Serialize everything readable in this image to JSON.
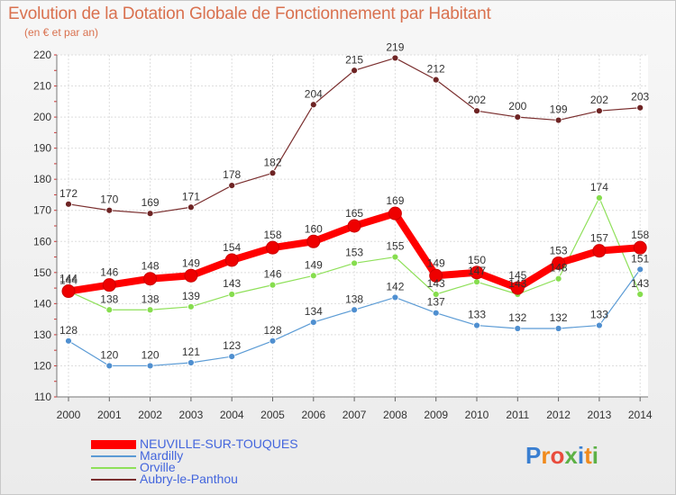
{
  "title": "Evolution de la Dotation Globale de Fonctionnement par Habitant",
  "subtitle": "(en € et par an)",
  "logo_text": "Proxiti",
  "chart_data": {
    "type": "line",
    "title": "Evolution de la Dotation Globale de Fonctionnement par Habitant",
    "subtitle": "(en € et par an)",
    "x": [
      2000,
      2001,
      2002,
      2003,
      2004,
      2005,
      2006,
      2007,
      2008,
      2009,
      2010,
      2011,
      2012,
      2013,
      2014
    ],
    "ylim": [
      110,
      220
    ],
    "yticks": [
      110,
      120,
      130,
      140,
      150,
      160,
      170,
      180,
      190,
      200,
      210,
      220
    ],
    "grid": true,
    "legend_position": "bottom-left",
    "series": [
      {
        "name": "NEUVILLE-SUR-TOUQUES",
        "color": "#ff0000",
        "values": [
          144,
          146,
          148,
          149,
          154,
          158,
          160,
          165,
          169,
          149,
          150,
          145,
          153,
          157,
          158
        ]
      },
      {
        "name": "Mardilly",
        "color": "#5b9bd5",
        "values": [
          128,
          120,
          120,
          121,
          123,
          128,
          134,
          138,
          142,
          137,
          133,
          132,
          132,
          133,
          151
        ]
      },
      {
        "name": "Orville",
        "color": "#8fe05a",
        "values": [
          144,
          138,
          138,
          139,
          143,
          146,
          149,
          153,
          155,
          143,
          147,
          143,
          148,
          174,
          143
        ]
      },
      {
        "name": "Aubry-le-Panthou",
        "color": "#7a2e2e",
        "values": [
          172,
          170,
          169,
          171,
          178,
          182,
          204,
          215,
          219,
          212,
          202,
          200,
          199,
          202,
          203
        ]
      }
    ]
  }
}
